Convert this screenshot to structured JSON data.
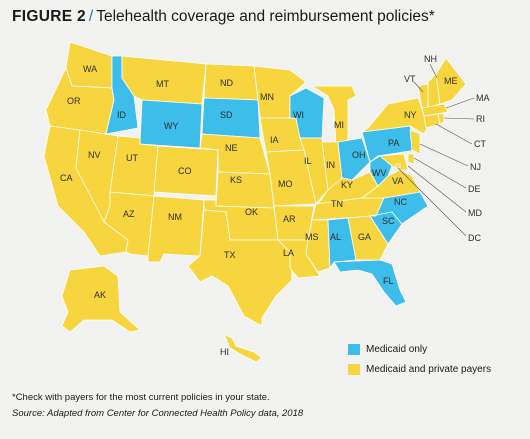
{
  "title": {
    "figure": "FIGURE 2",
    "slash": "/",
    "text": "Telehealth coverage and reimbursement policies*"
  },
  "colors": {
    "medicaid_only": "#3dbde9",
    "medicaid_and_private": "#f7d53e",
    "border": "#ffffff",
    "leader_line": "#555555"
  },
  "legend": {
    "medicaid_only": "Medicaid only",
    "medicaid_and_private": "Medicaid and private payers"
  },
  "states": {
    "WA": {
      "label": "WA",
      "category": "medicaid_and_private"
    },
    "OR": {
      "label": "OR",
      "category": "medicaid_and_private"
    },
    "CA": {
      "label": "CA",
      "category": "medicaid_and_private"
    },
    "NV": {
      "label": "NV",
      "category": "medicaid_and_private"
    },
    "ID": {
      "label": "ID",
      "category": "medicaid_only"
    },
    "MT": {
      "label": "MT",
      "category": "medicaid_and_private"
    },
    "WY": {
      "label": "WY",
      "category": "medicaid_only"
    },
    "UT": {
      "label": "UT",
      "category": "medicaid_and_private"
    },
    "AZ": {
      "label": "AZ",
      "category": "medicaid_and_private"
    },
    "CO": {
      "label": "CO",
      "category": "medicaid_and_private"
    },
    "NM": {
      "label": "NM",
      "category": "medicaid_and_private"
    },
    "ND": {
      "label": "ND",
      "category": "medicaid_and_private"
    },
    "SD": {
      "label": "SD",
      "category": "medicaid_only"
    },
    "NE": {
      "label": "NE",
      "category": "medicaid_and_private"
    },
    "KS": {
      "label": "KS",
      "category": "medicaid_and_private"
    },
    "OK": {
      "label": "OK",
      "category": "medicaid_and_private"
    },
    "TX": {
      "label": "TX",
      "category": "medicaid_and_private"
    },
    "MN": {
      "label": "MN",
      "category": "medicaid_and_private"
    },
    "IA": {
      "label": "IA",
      "category": "medicaid_and_private"
    },
    "MO": {
      "label": "MO",
      "category": "medicaid_and_private"
    },
    "AR": {
      "label": "AR",
      "category": "medicaid_and_private"
    },
    "LA": {
      "label": "LA",
      "category": "medicaid_and_private"
    },
    "WI": {
      "label": "WI",
      "category": "medicaid_only"
    },
    "IL": {
      "label": "IL",
      "category": "medicaid_and_private"
    },
    "MI": {
      "label": "MI",
      "category": "medicaid_and_private"
    },
    "IN": {
      "label": "IN",
      "category": "medicaid_and_private"
    },
    "OH": {
      "label": "OH",
      "category": "medicaid_only"
    },
    "KY": {
      "label": "KY",
      "category": "medicaid_and_private"
    },
    "TN": {
      "label": "TN",
      "category": "medicaid_and_private"
    },
    "MS": {
      "label": "MS",
      "category": "medicaid_and_private"
    },
    "AL": {
      "label": "AL",
      "category": "medicaid_only"
    },
    "GA": {
      "label": "GA",
      "category": "medicaid_and_private"
    },
    "FL": {
      "label": "FL",
      "category": "medicaid_only"
    },
    "SC": {
      "label": "SC",
      "category": "medicaid_only"
    },
    "NC": {
      "label": "NC",
      "category": "medicaid_only"
    },
    "VA": {
      "label": "VA",
      "category": "medicaid_and_private"
    },
    "WV": {
      "label": "WV",
      "category": "medicaid_only"
    },
    "PA": {
      "label": "PA",
      "category": "medicaid_only"
    },
    "NY": {
      "label": "NY",
      "category": "medicaid_and_private"
    },
    "VT": {
      "label": "VT",
      "category": "medicaid_and_private"
    },
    "NH": {
      "label": "NH",
      "category": "medicaid_and_private"
    },
    "ME": {
      "label": "ME",
      "category": "medicaid_and_private"
    },
    "MA": {
      "label": "MA",
      "category": "medicaid_and_private"
    },
    "RI": {
      "label": "RI",
      "category": "medicaid_and_private"
    },
    "CT": {
      "label": "CT",
      "category": "medicaid_and_private"
    },
    "NJ": {
      "label": "NJ",
      "category": "medicaid_and_private"
    },
    "DE": {
      "label": "DE",
      "category": "medicaid_and_private"
    },
    "MD": {
      "label": "MD",
      "category": "medicaid_and_private"
    },
    "DC": {
      "label": "DC",
      "category": "medicaid_and_private"
    },
    "AK": {
      "label": "AK",
      "category": "medicaid_and_private"
    },
    "HI": {
      "label": "HI",
      "category": "medicaid_and_private"
    }
  },
  "footnote": "*Check with payers for the most current policies in your state.",
  "source": "Source: Adapted from Center for Connected Health Policy data, 2018"
}
